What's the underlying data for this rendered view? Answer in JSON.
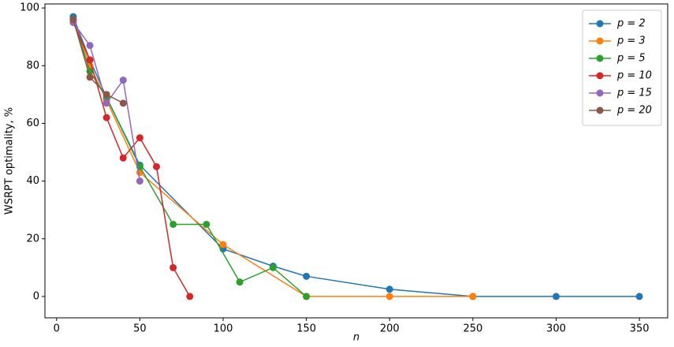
{
  "chart_data": {
    "type": "line",
    "x_label": "n",
    "y_label": "WSRPT optimality, %",
    "xlim": [
      -7,
      367
    ],
    "xticks": [
      0,
      50,
      100,
      150,
      200,
      250,
      300,
      350
    ],
    "ylim": [
      -7.4,
      101.4
    ],
    "yticks": [
      0,
      20,
      40,
      60,
      80,
      100
    ],
    "legend": "upper right",
    "grid": false,
    "series": [
      {
        "name": "p = 2",
        "color": "#1f77b4",
        "x": [
          10,
          20,
          30,
          50,
          100,
          130,
          150,
          200,
          250,
          300,
          350
        ],
        "values": [
          97,
          82,
          69,
          45.5,
          16.5,
          10.5,
          7,
          2.5,
          0,
          0,
          0
        ]
      },
      {
        "name": "p = 3",
        "color": "#ff7f0e",
        "x": [
          10,
          20,
          30,
          50,
          100,
          150,
          200,
          250
        ],
        "values": [
          96,
          80,
          68,
          43,
          18,
          0,
          0,
          0
        ]
      },
      {
        "name": "p = 5",
        "color": "#2ca02c",
        "x": [
          10,
          20,
          30,
          50,
          70,
          90,
          110,
          130,
          150
        ],
        "values": [
          96,
          78,
          69,
          45,
          25,
          25,
          5,
          10,
          0
        ]
      },
      {
        "name": "p = 10",
        "color": "#d62728",
        "x": [
          10,
          20,
          30,
          40,
          50,
          60,
          70,
          80
        ],
        "values": [
          95,
          82,
          62,
          48,
          55,
          45,
          10,
          0
        ]
      },
      {
        "name": "p = 15",
        "color": "#9467bd",
        "x": [
          10,
          20,
          30,
          40,
          50
        ],
        "values": [
          95,
          87,
          67,
          75,
          40
        ]
      },
      {
        "name": "p = 20",
        "color": "#8c564b",
        "x": [
          10,
          20,
          30,
          40
        ],
        "values": [
          96,
          76,
          70,
          67
        ]
      }
    ]
  }
}
